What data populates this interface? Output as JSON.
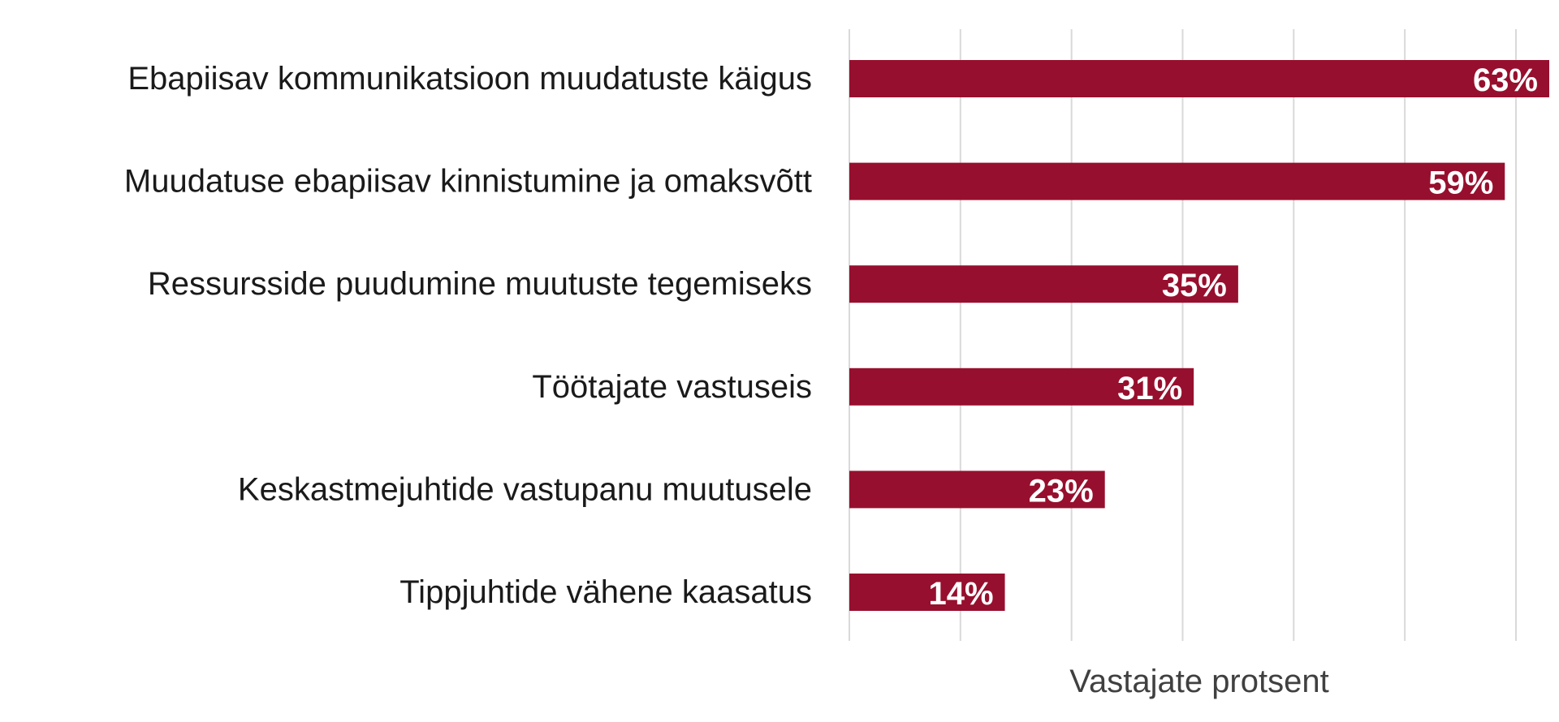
{
  "chart_data": {
    "type": "bar",
    "orientation": "horizontal",
    "categories": [
      "Ebapiisav kommunikatsioon muudatuste käigus",
      "Muudatuse ebapiisav kinnistumine ja omaksvõtt",
      "Ressursside puudumine muutuste tegemiseks",
      "Töötajate vastuseis",
      "Keskastmejuhtide vastupanu muutusele",
      "Tippjuhtide vähene kaasatus"
    ],
    "values": [
      63,
      59,
      35,
      31,
      23,
      14
    ],
    "data_labels": [
      "63%",
      "59%",
      "35%",
      "31%",
      "23%",
      "14%"
    ],
    "title": "",
    "xlabel": "Vastajate protsent",
    "ylabel": "",
    "xlim": [
      0,
      63
    ],
    "grid": true,
    "grid_step": 10,
    "legend": "none",
    "bar_color": "#970f2e",
    "grid_color": "#d9d9d9",
    "label_color": "#1a1a1a",
    "axis_title_color": "#404040"
  }
}
